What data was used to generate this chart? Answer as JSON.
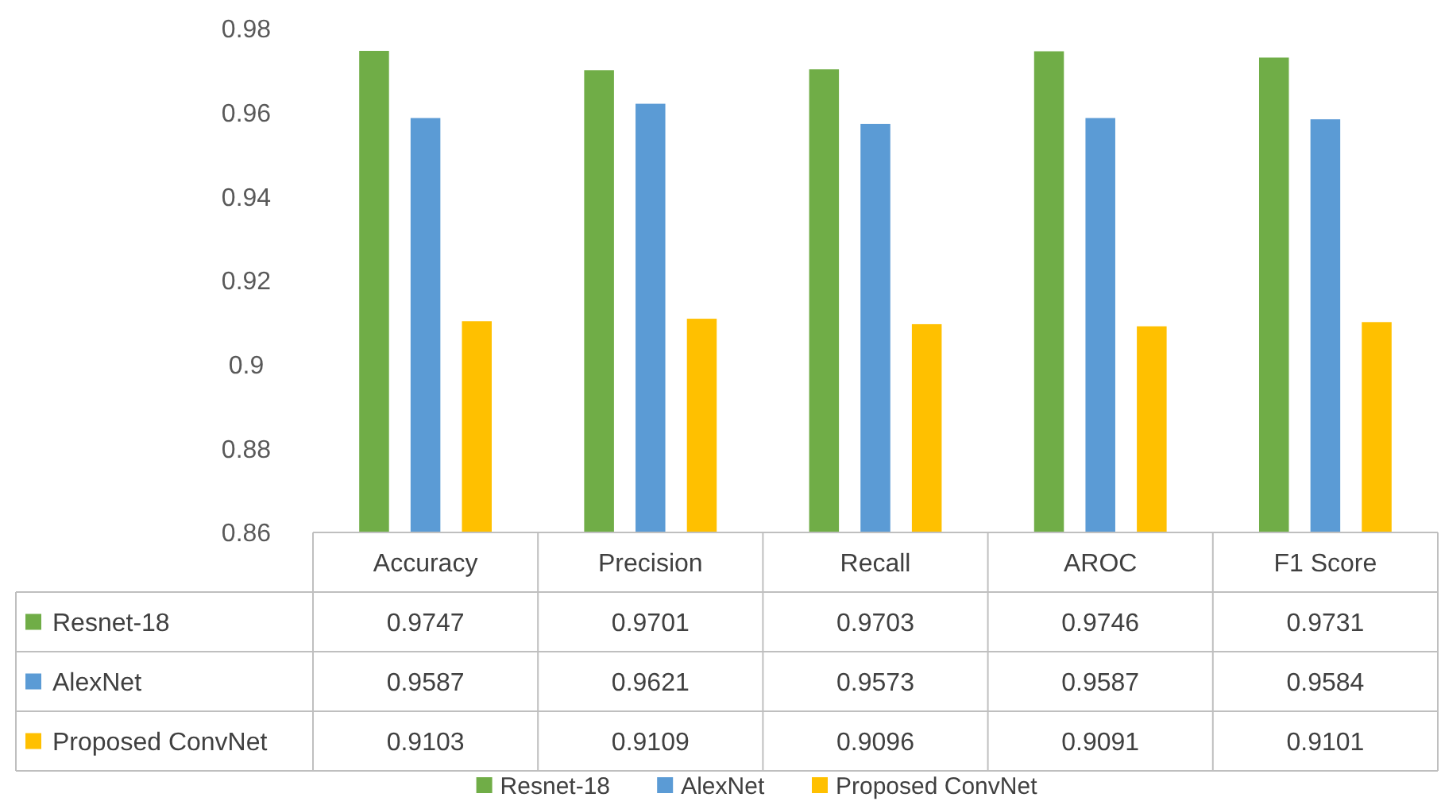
{
  "chart_data": {
    "type": "bar",
    "categories": [
      "Accuracy",
      "Precision",
      "Recall",
      "AROC",
      "F1 Score"
    ],
    "series": [
      {
        "name": "Resnet-18",
        "color": "#70ad47",
        "values": [
          0.9747,
          0.9701,
          0.9703,
          0.9746,
          0.9731
        ]
      },
      {
        "name": "AlexNet",
        "color": "#5b9bd5",
        "values": [
          0.9587,
          0.9621,
          0.9573,
          0.9587,
          0.9584
        ]
      },
      {
        "name": "Proposed ConvNet",
        "color": "#ffc000",
        "values": [
          0.9103,
          0.9109,
          0.9096,
          0.9091,
          0.9101
        ]
      }
    ],
    "ylim": [
      0.86,
      0.98
    ],
    "yticks": [
      0.86,
      0.88,
      0.9,
      0.92,
      0.94,
      0.96,
      0.98
    ],
    "data_labels": true,
    "legend": "bottom"
  }
}
